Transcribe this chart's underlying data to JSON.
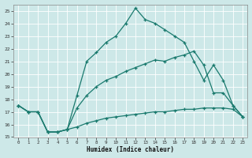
{
  "xlabel": "Humidex (Indice chaleur)",
  "background_color": "#cde8e8",
  "grid_color": "#b0d0d0",
  "line_color": "#1a7a6e",
  "xlim": [
    -0.5,
    23.5
  ],
  "ylim": [
    15,
    25.5
  ],
  "yticks": [
    15,
    16,
    17,
    18,
    19,
    20,
    21,
    22,
    23,
    24,
    25
  ],
  "xticks": [
    0,
    1,
    2,
    3,
    4,
    5,
    6,
    7,
    8,
    9,
    10,
    11,
    12,
    13,
    14,
    15,
    16,
    17,
    18,
    19,
    20,
    21,
    22,
    23
  ],
  "line_bottom_x": [
    0,
    1,
    2,
    3,
    4,
    5,
    6,
    7,
    8,
    9,
    10,
    11,
    12,
    13,
    14,
    15,
    16,
    17,
    18,
    19,
    20,
    21,
    22,
    23
  ],
  "line_bottom_y": [
    17.5,
    17.0,
    17.0,
    15.4,
    15.4,
    15.6,
    15.8,
    16.1,
    16.3,
    16.5,
    16.6,
    16.7,
    16.8,
    16.9,
    17.0,
    17.0,
    17.1,
    17.2,
    17.2,
    17.3,
    17.3,
    17.3,
    17.2,
    16.6
  ],
  "line_top_x": [
    0,
    1,
    2,
    3,
    4,
    5,
    6,
    7,
    8,
    9,
    10,
    11,
    12,
    13,
    14,
    15,
    16,
    17,
    18,
    19,
    20,
    21,
    22,
    23
  ],
  "line_top_y": [
    17.5,
    17.0,
    17.0,
    15.4,
    15.4,
    15.6,
    18.3,
    21.0,
    21.7,
    22.5,
    23.0,
    24.0,
    25.2,
    24.3,
    24.0,
    23.5,
    23.0,
    22.5,
    21.0,
    19.5,
    20.7,
    19.5,
    17.5,
    16.6
  ],
  "line_mid_x": [
    0,
    1,
    2,
    3,
    4,
    5,
    6,
    7,
    8,
    9,
    10,
    11,
    12,
    13,
    14,
    15,
    16,
    17,
    18,
    19,
    20,
    21,
    22,
    23
  ],
  "line_mid_y": [
    17.5,
    17.0,
    17.0,
    15.4,
    15.4,
    15.6,
    17.3,
    18.3,
    19.0,
    19.5,
    19.8,
    20.2,
    20.5,
    20.8,
    21.1,
    21.0,
    21.3,
    21.5,
    21.8,
    20.7,
    18.5,
    18.5,
    17.5,
    16.6
  ]
}
